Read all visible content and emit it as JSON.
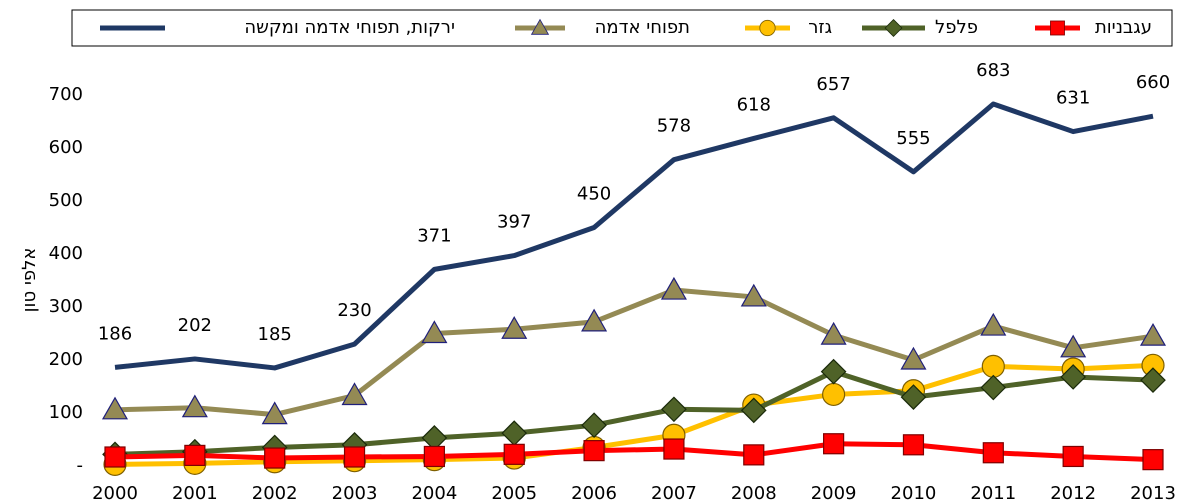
{
  "chart_data": {
    "type": "line",
    "y_label": "אלפי טון",
    "categories": [
      "2000",
      "2001",
      "2002",
      "2003",
      "2004",
      "2005",
      "2006",
      "2007",
      "2008",
      "2009",
      "2010",
      "2011",
      "2012",
      "2013"
    ],
    "ylim": [
      0,
      700
    ],
    "yticks": [
      {
        "value": 0,
        "label": "-"
      },
      100,
      200,
      300,
      400,
      500,
      600,
      700
    ],
    "series": [
      {
        "name": "ירקות, תפוחי אדמה ומקשה",
        "color": "#1f3864",
        "marker": "none",
        "data_labels": true,
        "values": [
          186,
          202,
          185,
          230,
          371,
          397,
          450,
          578,
          618,
          657,
          555,
          683,
          631,
          660
        ]
      },
      {
        "name": "תפוחי אדמה",
        "color": "#948a54",
        "marker": "triangle",
        "values": [
          106,
          110,
          97,
          133,
          250,
          258,
          272,
          332,
          319,
          247,
          200,
          264,
          223,
          245
        ]
      },
      {
        "name": "גזר",
        "color": "#ffc000",
        "marker": "circle",
        "values": [
          3,
          5,
          8,
          10,
          12,
          15,
          35,
          58,
          115,
          135,
          142,
          188,
          183,
          190
        ]
      },
      {
        "name": "פלפל",
        "color": "#4f6228",
        "marker": "diamond",
        "values": [
          22,
          27,
          35,
          40,
          53,
          62,
          77,
          107,
          105,
          178,
          130,
          148,
          168,
          162
        ]
      },
      {
        "name": "עגבניות",
        "color": "#ff0000",
        "marker": "square",
        "values": [
          17,
          20,
          15,
          17,
          18,
          22,
          29,
          32,
          21,
          42,
          40,
          25,
          18,
          12
        ]
      }
    ]
  }
}
